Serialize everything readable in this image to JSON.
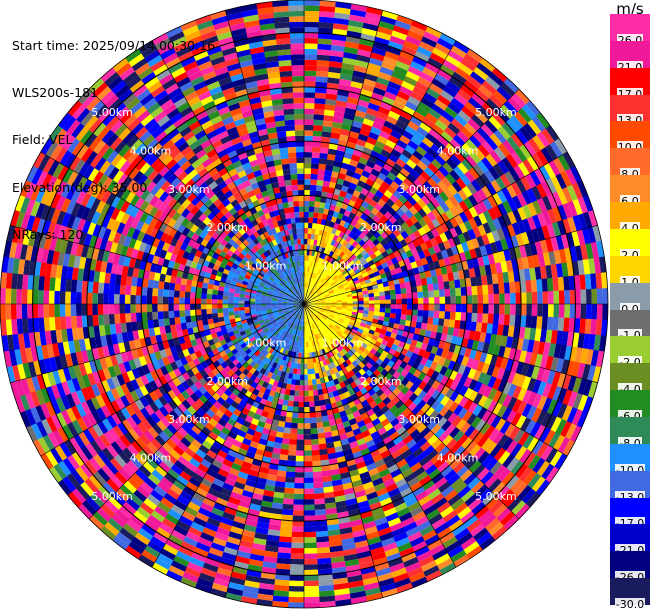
{
  "info": {
    "start_time": "Start time: 2025/09/14 00:30:16",
    "instrument": "WLS200s-181",
    "field": "Field: VEL",
    "elevation": "Elevation(deg): 35.00",
    "nrays": "NRays: 120"
  },
  "colorbar": {
    "unit": "m/s",
    "bins": [
      {
        "label": "26.0",
        "color": "#ff2ca8"
      },
      {
        "label": "21.0",
        "color": "#f0199a"
      },
      {
        "label": "17.0",
        "color": "#ff0000"
      },
      {
        "label": "13.0",
        "color": "#ff3030"
      },
      {
        "label": "10.0",
        "color": "#ff4a00"
      },
      {
        "label": "8.0",
        "color": "#ff6a2a"
      },
      {
        "label": "6.0",
        "color": "#ff8c28"
      },
      {
        "label": "4.0",
        "color": "#ffaa00"
      },
      {
        "label": "2.0",
        "color": "#ffff00"
      },
      {
        "label": "1.0",
        "color": "#ffd500"
      },
      {
        "label": "0.0",
        "color": "#8a9caa"
      },
      {
        "label": "-1.0",
        "color": "#6e6e6e"
      },
      {
        "label": "-2.0",
        "color": "#9acd32"
      },
      {
        "label": "-4.0",
        "color": "#6b8e23"
      },
      {
        "label": "-6.0",
        "color": "#228b22"
      },
      {
        "label": "-8.0",
        "color": "#2e8b57"
      },
      {
        "label": "-10.0",
        "color": "#1e90ff"
      },
      {
        "label": "-13.0",
        "color": "#4169e1"
      },
      {
        "label": "-17.0",
        "color": "#0000ff"
      },
      {
        "label": "-21.0",
        "color": "#0000cd"
      },
      {
        "label": "-26.0",
        "color": "#000080"
      },
      {
        "label": "-30.0",
        "color": "#1a1a5e"
      }
    ]
  },
  "chart_data": {
    "type": "ppi",
    "field": "VEL",
    "nrays": 120,
    "elevation_deg": 35.0,
    "range_rings_km": [
      1.0,
      2.0,
      3.0,
      4.0,
      5.0
    ],
    "ring_labels": [
      "1.00km",
      "2.00km",
      "3.00km",
      "4.00km",
      "5.00km"
    ],
    "max_range_km": 5.6,
    "gate_spacing_km": 0.05,
    "colorscale_min": -30.0,
    "colorscale_max": 26.0,
    "near_field": {
      "east_half_mean_ms": 3.0,
      "west_half_mean_ms": -10.0,
      "coherent_range_km": 1.5
    },
    "far_field": "noise"
  }
}
